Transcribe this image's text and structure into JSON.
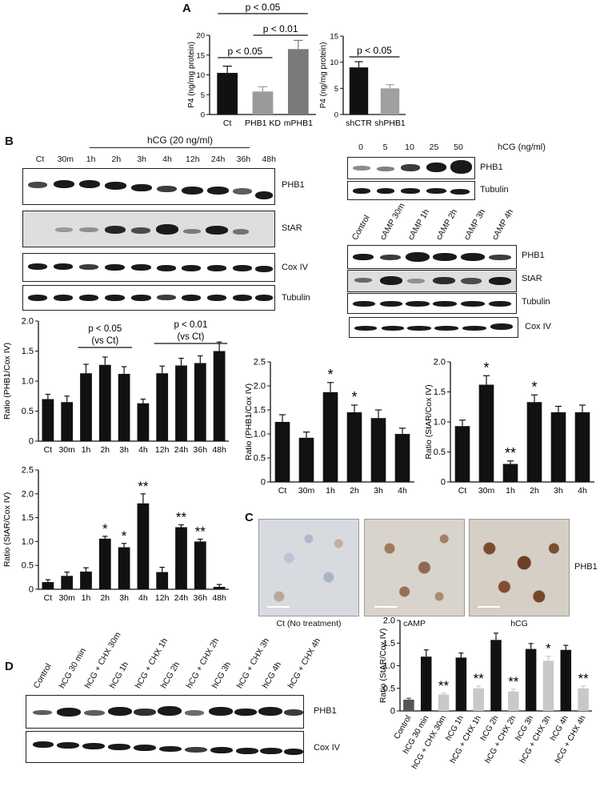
{
  "panels": {
    "A": "A",
    "B": "B",
    "C": "C",
    "D": "D"
  },
  "chart_data": [
    {
      "id": "A1",
      "type": "bar",
      "categories": [
        "Ct",
        "PHB1 KD",
        "mPHB1"
      ],
      "values": [
        10.5,
        5.8,
        16.5
      ],
      "errors": [
        1.7,
        1.2,
        2.2
      ],
      "colors": [
        "#111111",
        "#9a9a9a",
        "#7a7a7a"
      ],
      "ylabel": "P4 (ng/mg protein)",
      "ylim": [
        0,
        20
      ],
      "yticks": [
        0,
        5,
        10,
        15,
        20
      ],
      "annotations": [
        "p < 0.05",
        "p < 0.01",
        "p < 0.05"
      ]
    },
    {
      "id": "A2",
      "type": "bar",
      "categories": [
        "shCTR",
        "shPHB1"
      ],
      "values": [
        9.0,
        5.0
      ],
      "errors": [
        1.1,
        0.7
      ],
      "colors": [
        "#111111",
        "#a0a0a0"
      ],
      "ylabel": "P4 (ng/mg protein)",
      "ylim": [
        0,
        15
      ],
      "yticks": [
        0,
        5,
        10,
        15
      ],
      "annotations": [
        "p < 0.05"
      ]
    },
    {
      "id": "B1",
      "type": "bar",
      "categories": [
        "Ct",
        "30m",
        "1h",
        "2h",
        "3h",
        "4h",
        "12h",
        "24h",
        "36h",
        "48h"
      ],
      "values": [
        0.7,
        0.65,
        1.13,
        1.27,
        1.12,
        0.63,
        1.13,
        1.26,
        1.3,
        1.5
      ],
      "errors": [
        0.08,
        0.1,
        0.15,
        0.13,
        0.12,
        0.07,
        0.12,
        0.12,
        0.12,
        0.15
      ],
      "ylabel": "Ratio (PHB1/Cox IV)",
      "ylim": [
        0,
        2.0
      ],
      "yticks": [
        0,
        0.5,
        1.0,
        1.5,
        2.0
      ],
      "annotations": [
        "p < 0.05",
        "(vs Ct)",
        "p < 0.01",
        "(vs Ct)"
      ]
    },
    {
      "id": "B2",
      "type": "bar",
      "categories": [
        "Ct",
        "30m",
        "1h",
        "2h",
        "3h",
        "4h",
        "12h",
        "24h",
        "36h",
        "48h"
      ],
      "values": [
        0.15,
        0.28,
        0.37,
        1.06,
        0.88,
        1.8,
        0.36,
        1.3,
        1.0,
        0.05
      ],
      "errors": [
        0.05,
        0.08,
        0.08,
        0.05,
        0.08,
        0.2,
        0.1,
        0.05,
        0.05,
        0.05
      ],
      "stars": [
        "",
        "",
        "",
        "*",
        "*",
        "**",
        "",
        "**",
        "**",
        ""
      ],
      "ylabel": "Ratio (StAR/Cox IV)",
      "ylim": [
        0,
        2.5
      ],
      "yticks": [
        0,
        0.5,
        1.0,
        1.5,
        2.0,
        2.5
      ]
    },
    {
      "id": "B3",
      "type": "bar",
      "categories": [
        "Ct",
        "30m",
        "1h",
        "2h",
        "3h",
        "4h"
      ],
      "values": [
        1.25,
        0.92,
        1.87,
        1.45,
        1.33,
        1.0
      ],
      "errors": [
        0.15,
        0.12,
        0.2,
        0.15,
        0.17,
        0.12
      ],
      "stars": [
        "",
        "",
        "*",
        "*",
        "",
        ""
      ],
      "ylabel": "Ratio (PHB1/Cox IV)",
      "ylim": [
        0,
        2.5
      ],
      "yticks": [
        0,
        0.5,
        1.0,
        1.5,
        2.0,
        2.5
      ]
    },
    {
      "id": "B4",
      "type": "bar",
      "categories": [
        "Ct",
        "30m",
        "1h",
        "2h",
        "3h",
        "4h"
      ],
      "values": [
        0.93,
        1.62,
        0.3,
        1.33,
        1.16,
        1.16
      ],
      "errors": [
        0.1,
        0.15,
        0.05,
        0.12,
        0.1,
        0.12
      ],
      "stars": [
        "",
        "*",
        "**",
        "*",
        "",
        ""
      ],
      "ylabel": "Ratio (StAR/Cox IV)",
      "ylim": [
        0,
        2.0
      ],
      "yticks": [
        0,
        0.5,
        1.0,
        1.5,
        2.0
      ]
    },
    {
      "id": "D1",
      "type": "bar",
      "categories": [
        "Control",
        "hCG 30 min",
        "hCG + CHX 30m",
        "hCG 1h",
        "hCG + CHX 1h",
        "hCG 2h",
        "hCG + CHX 2h",
        "hCG 3h",
        "hCG + CHX 3h",
        "hCG 4h",
        "hCG + CHX 4h"
      ],
      "values": [
        0.25,
        1.2,
        0.36,
        1.18,
        0.5,
        1.57,
        0.43,
        1.37,
        1.11,
        1.35,
        0.5
      ],
      "errors": [
        0.03,
        0.15,
        0.03,
        0.1,
        0.05,
        0.15,
        0.05,
        0.12,
        0.1,
        0.1,
        0.05
      ],
      "colors": [
        "#555555",
        "#111111",
        "#c8c8c8",
        "#111111",
        "#c8c8c8",
        "#111111",
        "#c8c8c8",
        "#111111",
        "#c8c8c8",
        "#111111",
        "#c8c8c8"
      ],
      "stars": [
        "",
        "",
        "**",
        "",
        "**",
        "",
        "**",
        "",
        "*",
        "",
        "**"
      ],
      "ylabel": "Ratio (StAR/Cox IV)",
      "ylim": [
        0,
        2.0
      ],
      "yticks": [
        0,
        0.5,
        1.0,
        1.5,
        2.0
      ]
    }
  ],
  "blots": {
    "B_time": {
      "header": "hCG (20 ng/ml)",
      "lanes": [
        "Ct",
        "30m",
        "1h",
        "2h",
        "3h",
        "4h",
        "12h",
        "24h",
        "36h",
        "48h"
      ],
      "rows": [
        "PHB1",
        "StAR",
        "Cox IV",
        "Tubulin"
      ]
    },
    "B_dose": {
      "header": "hCG (ng/ml)",
      "lanes": [
        "0",
        "5",
        "10",
        "25",
        "50"
      ],
      "rows": [
        "PHB1",
        "Tubulin"
      ]
    },
    "B_camp": {
      "lanes": [
        "Control",
        "cAMP 30m",
        "cAMP 1h",
        "cAMP 2h",
        "cAMP 3h",
        "cAMP 4h"
      ],
      "rows": [
        "PHB1",
        "StAR",
        "Tubulin",
        "Cox IV"
      ]
    },
    "D": {
      "lanes": [
        "Control",
        "hCG 30 min",
        "hCG + CHX 30m",
        "hCG 1h",
        "hCG + CHX 1h",
        "hCG 2h",
        "hCG + CHX 2h",
        "hCG 3h",
        "hCG + CHX 3h",
        "hCG 4h",
        "hCG + CHX 4h"
      ],
      "rows": [
        "PHB1",
        "Cox IV"
      ]
    }
  },
  "micrographs": {
    "captions": [
      "Ct (No treatment)",
      "cAMP",
      "hCG"
    ],
    "label": "PHB1"
  }
}
